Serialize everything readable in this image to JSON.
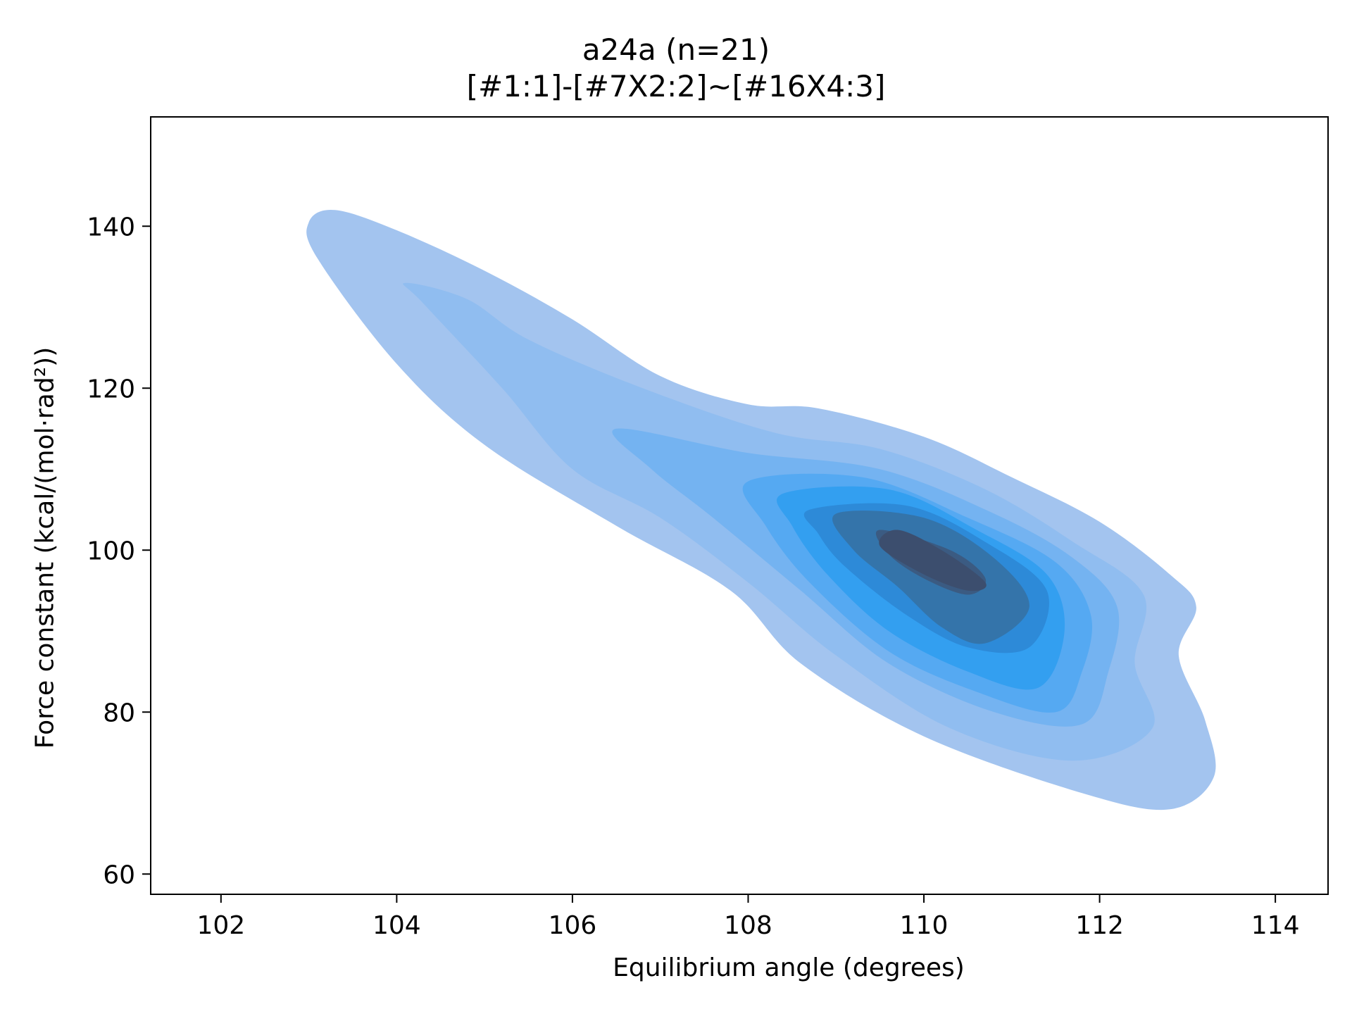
{
  "chart_data": {
    "type": "kde-contour",
    "title": "a24a (n=21)",
    "subtitle": "[#1:1]-[#7X2:2]~[#16X4:3]",
    "xlabel": "Equilibrium angle (degrees)",
    "ylabel": "Force constant (kcal/(mol·rad²))",
    "xlim": [
      101.2,
      114.6
    ],
    "ylim": [
      57.5,
      153.5
    ],
    "x_ticks": [
      "102",
      "104",
      "106",
      "108",
      "110",
      "112",
      "114"
    ],
    "y_ticks": [
      "60",
      "80",
      "100",
      "120",
      "140"
    ],
    "grid": false,
    "legend": "none",
    "levels": [
      {
        "level": 1,
        "color": "#a3c4ef",
        "points": [
          [
            103.0,
            140.5
          ],
          [
            103.3,
            142.0
          ],
          [
            104.0,
            139.5
          ],
          [
            105.0,
            134.5
          ],
          [
            106.0,
            128.5
          ],
          [
            107.0,
            121.5
          ],
          [
            108.0,
            118.0
          ],
          [
            108.8,
            117.5
          ],
          [
            110.0,
            114.0
          ],
          [
            111.0,
            109.0
          ],
          [
            112.0,
            103.5
          ],
          [
            112.8,
            97.0
          ],
          [
            113.1,
            93.0
          ],
          [
            112.9,
            87.0
          ],
          [
            113.2,
            79.0
          ],
          [
            113.3,
            72.0
          ],
          [
            112.8,
            68.0
          ],
          [
            111.8,
            70.0
          ],
          [
            110.0,
            77.0
          ],
          [
            108.6,
            86.0
          ],
          [
            107.8,
            95.0
          ],
          [
            106.5,
            103.0
          ],
          [
            105.0,
            113.0
          ],
          [
            104.0,
            123.0
          ],
          [
            103.1,
            136.0
          ]
        ]
      },
      {
        "level": 2,
        "color": "#90bdf0",
        "points": [
          [
            104.1,
            133.0
          ],
          [
            104.8,
            131.0
          ],
          [
            105.5,
            126.0
          ],
          [
            106.8,
            120.0
          ],
          [
            108.3,
            114.5
          ],
          [
            109.5,
            112.5
          ],
          [
            110.7,
            107.5
          ],
          [
            111.7,
            101.0
          ],
          [
            112.5,
            94.5
          ],
          [
            112.4,
            86.0
          ],
          [
            112.6,
            78.0
          ],
          [
            111.7,
            74.0
          ],
          [
            110.3,
            78.0
          ],
          [
            109.0,
            87.0
          ],
          [
            108.0,
            96.0
          ],
          [
            107.0,
            104.0
          ],
          [
            106.0,
            110.0
          ],
          [
            105.2,
            120.0
          ],
          [
            104.3,
            130.5
          ]
        ]
      },
      {
        "level": 3,
        "color": "#74b3f1",
        "points": [
          [
            106.5,
            115.0
          ],
          [
            108.0,
            112.0
          ],
          [
            109.5,
            110.0
          ],
          [
            110.8,
            104.5
          ],
          [
            111.7,
            99.0
          ],
          [
            112.2,
            93.0
          ],
          [
            112.1,
            85.0
          ],
          [
            111.8,
            78.5
          ],
          [
            110.8,
            80.0
          ],
          [
            109.6,
            86.0
          ],
          [
            108.6,
            95.0
          ],
          [
            107.6,
            104.0
          ],
          [
            106.9,
            110.0
          ]
        ]
      },
      {
        "level": 4,
        "color": "#55a9f2",
        "points": [
          [
            108.0,
            108.5
          ],
          [
            109.3,
            109.0
          ],
          [
            110.5,
            104.0
          ],
          [
            111.5,
            98.5
          ],
          [
            111.9,
            92.0
          ],
          [
            111.8,
            85.0
          ],
          [
            111.5,
            80.0
          ],
          [
            110.6,
            82.5
          ],
          [
            109.6,
            87.5
          ],
          [
            108.7,
            96.0
          ],
          [
            108.2,
            103.0
          ]
        ]
      },
      {
        "level": 5,
        "color": "#339ff0",
        "points": [
          [
            108.4,
            107.0
          ],
          [
            109.6,
            107.5
          ],
          [
            110.6,
            102.5
          ],
          [
            111.4,
            97.0
          ],
          [
            111.6,
            90.0
          ],
          [
            111.3,
            83.0
          ],
          [
            110.5,
            85.0
          ],
          [
            109.6,
            90.0
          ],
          [
            108.9,
            97.0
          ],
          [
            108.5,
            103.0
          ]
        ]
      },
      {
        "level": 6,
        "color": "#2d8ad8",
        "points": [
          [
            108.7,
            105.0
          ],
          [
            109.8,
            105.5
          ],
          [
            110.7,
            101.0
          ],
          [
            111.4,
            95.0
          ],
          [
            111.2,
            88.0
          ],
          [
            110.5,
            88.0
          ],
          [
            109.8,
            92.0
          ],
          [
            109.1,
            98.0
          ],
          [
            108.8,
            102.0
          ]
        ]
      },
      {
        "level": 7,
        "color": "#3474aa",
        "points": [
          [
            109.0,
            104.5
          ],
          [
            110.0,
            104.0
          ],
          [
            110.8,
            99.0
          ],
          [
            111.2,
            93.0
          ],
          [
            110.7,
            88.5
          ],
          [
            110.2,
            90.5
          ],
          [
            109.7,
            95.5
          ],
          [
            109.2,
            100.0
          ]
        ]
      },
      {
        "level": 8,
        "color": "#3b5b82",
        "points": [
          [
            109.5,
            102.5
          ],
          [
            110.3,
            100.0
          ],
          [
            110.7,
            96.5
          ],
          [
            110.5,
            94.5
          ],
          [
            110.0,
            96.5
          ],
          [
            109.6,
            99.5
          ]
        ]
      },
      {
        "level": 9,
        "color": "#3c4e6e",
        "points": [
          [
            109.7,
            102.5
          ],
          [
            110.2,
            100.0
          ],
          [
            110.7,
            96.0
          ],
          [
            110.5,
            95.0
          ],
          [
            110.0,
            97.0
          ],
          [
            109.5,
            100.5
          ]
        ]
      }
    ]
  }
}
